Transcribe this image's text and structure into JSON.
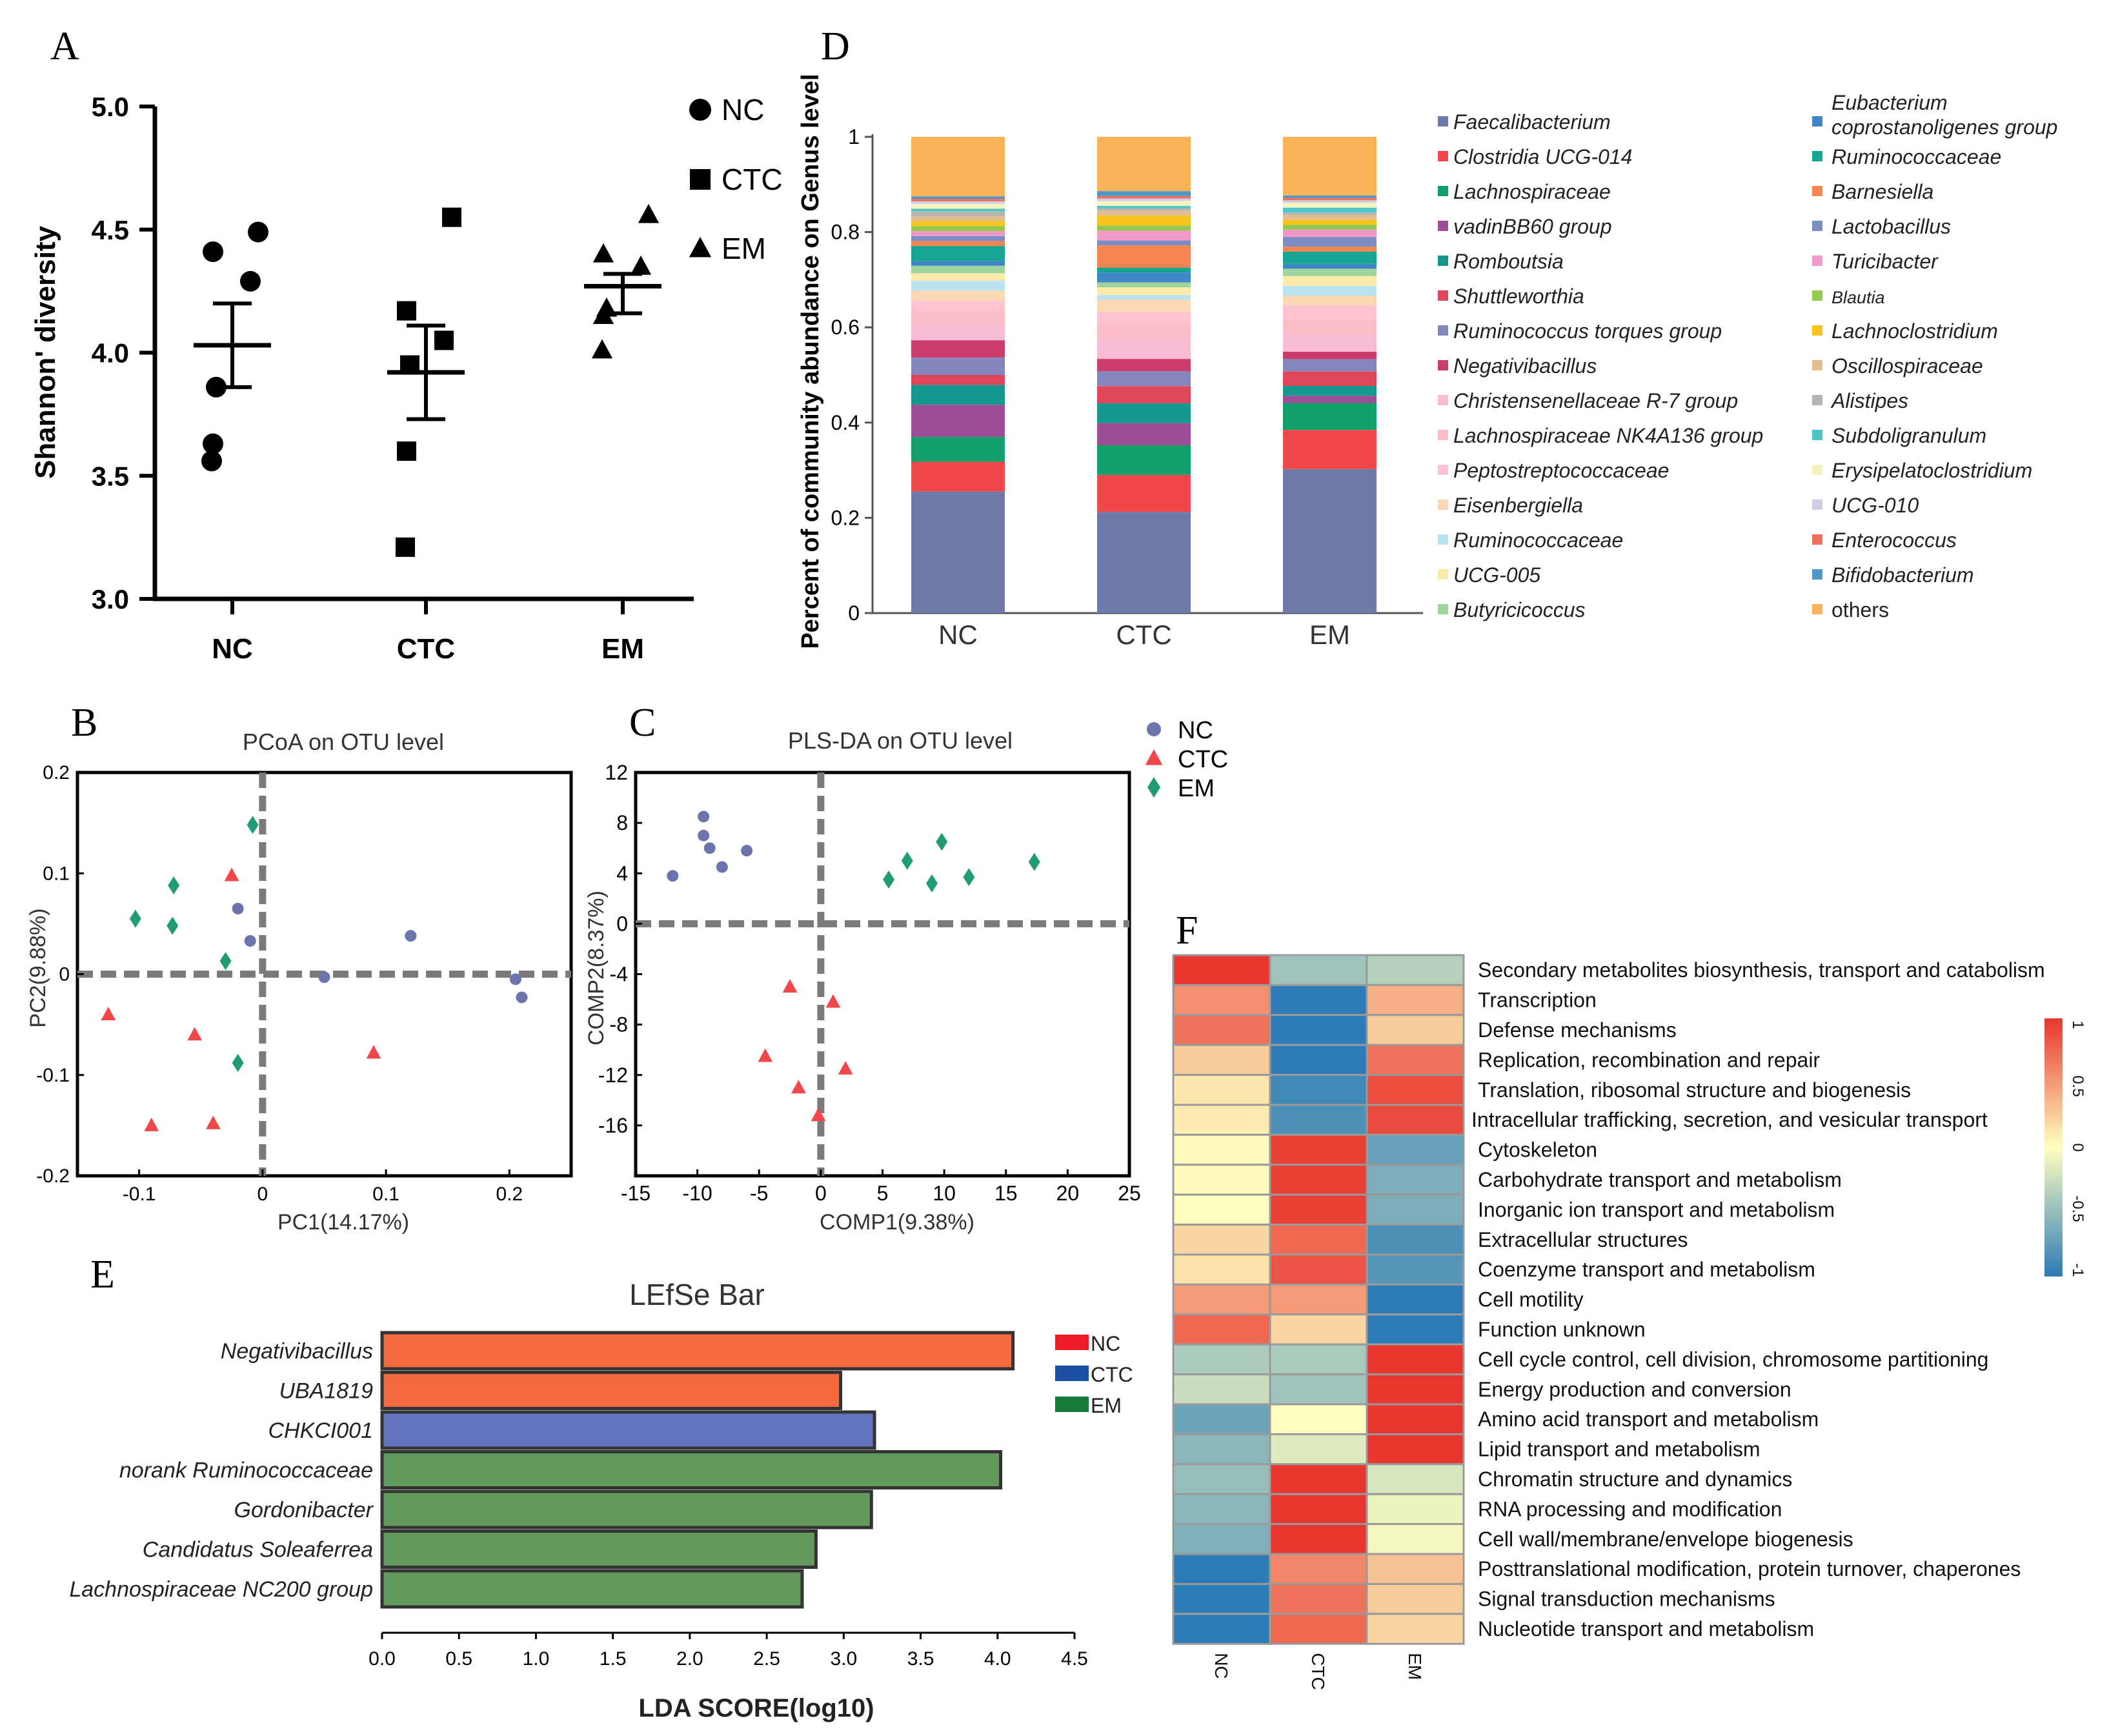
{
  "colors": {
    "nc_point": "#6b74ad",
    "ctc_point": "#f0474a",
    "em_point": "#1f9c75",
    "lefse_nc": "#f46a3e",
    "lefse_ctc": "#6173be",
    "lefse_em": "#629a5c",
    "lefse_legend_nc": "#ee1c24",
    "lefse_legend_ctc": "#1a4fa3",
    "lefse_legend_em": "#157a3a",
    "heat_low": "#2c7bb6",
    "heat_mid": "#ffffbf",
    "heat_high": "#e8352e"
  },
  "chart_data": [
    {
      "panel": "A",
      "type": "scatter",
      "title": "",
      "xlabel": "",
      "ylabel": "Shannon' diversity",
      "ylim": [
        3.0,
        5.0
      ],
      "yticks": [
        "3.0",
        "3.5",
        "4.0",
        "4.5",
        "5.0"
      ],
      "categories": [
        "NC",
        "CTC",
        "EM"
      ],
      "legend": [
        "NC",
        "CTC",
        "EM"
      ],
      "series": [
        {
          "name": "NC",
          "marker": "circle",
          "values": [
            4.49,
            4.41,
            4.29,
            3.86,
            3.63,
            3.56
          ],
          "mean": 4.03,
          "sem_upper": 4.2,
          "sem_lower": 3.86
        },
        {
          "name": "CTC",
          "marker": "square",
          "values": [
            4.55,
            4.17,
            4.05,
            3.95,
            3.6,
            3.21
          ],
          "mean": 3.92,
          "sem_upper": 4.11,
          "sem_lower": 3.73
        },
        {
          "name": "EM",
          "marker": "triangle",
          "values": [
            4.56,
            4.4,
            4.35,
            4.18,
            4.15,
            4.01
          ],
          "mean": 4.27,
          "sem_upper": 4.32,
          "sem_lower": 4.16
        }
      ]
    },
    {
      "panel": "B",
      "type": "scatter",
      "title": "PCoA on OTU level",
      "xlabel": "PC1(14.17%)",
      "ylabel": "PC2(9.88%)",
      "xlim": [
        -0.15,
        0.25
      ],
      "ylim": [
        -0.2,
        0.2
      ],
      "xticks": [
        "-0.1",
        "0",
        "0.1",
        "0.2"
      ],
      "yticks": [
        "-0.2",
        "-0.1",
        "0",
        "0.1",
        "0.2"
      ],
      "series": [
        {
          "name": "NC",
          "points": [
            [
              -0.02,
              0.065
            ],
            [
              -0.01,
              0.033
            ],
            [
              0.05,
              -0.003
            ],
            [
              0.12,
              0.038
            ],
            [
              0.205,
              -0.005
            ],
            [
              0.21,
              -0.023
            ]
          ]
        },
        {
          "name": "CTC",
          "points": [
            [
              -0.025,
              0.098
            ],
            [
              -0.125,
              -0.04
            ],
            [
              -0.055,
              -0.06
            ],
            [
              -0.09,
              -0.15
            ],
            [
              -0.04,
              -0.148
            ],
            [
              0.09,
              -0.078
            ]
          ]
        },
        {
          "name": "EM",
          "points": [
            [
              -0.008,
              0.148
            ],
            [
              -0.072,
              0.088
            ],
            [
              -0.103,
              0.055
            ],
            [
              -0.073,
              0.048
            ],
            [
              -0.03,
              0.013
            ],
            [
              -0.02,
              -0.088
            ]
          ]
        }
      ]
    },
    {
      "panel": "C",
      "type": "scatter",
      "title": "PLS-DA on OTU level",
      "xlabel": "COMP1(9.38%)",
      "ylabel": "COMP2(8.37%)",
      "xlim": [
        -15,
        25
      ],
      "ylim": [
        -20,
        12
      ],
      "xticks": [
        "-15",
        "-10",
        "-5",
        "0",
        "5",
        "10",
        "15",
        "20",
        "25"
      ],
      "yticks": [
        "-16",
        "-12",
        "-8",
        "-4",
        "0",
        "4",
        "8",
        "12"
      ],
      "legend": [
        "NC",
        "CTC",
        "EM"
      ],
      "series": [
        {
          "name": "NC",
          "points": [
            [
              -12,
              3.8
            ],
            [
              -9.5,
              8.5
            ],
            [
              -9.5,
              7
            ],
            [
              -9,
              6
            ],
            [
              -8,
              4.5
            ],
            [
              -6,
              5.8
            ]
          ]
        },
        {
          "name": "CTC",
          "points": [
            [
              -2.5,
              -5
            ],
            [
              1,
              -6.2
            ],
            [
              -4.5,
              -10.5
            ],
            [
              -1.8,
              -13
            ],
            [
              2,
              -11.5
            ],
            [
              -0.2,
              -15.2
            ]
          ]
        },
        {
          "name": "EM",
          "points": [
            [
              5.5,
              3.5
            ],
            [
              7,
              5
            ],
            [
              9,
              3.2
            ],
            [
              9.8,
              6.5
            ],
            [
              12,
              3.7
            ],
            [
              17.3,
              4.9
            ]
          ]
        }
      ]
    },
    {
      "panel": "D",
      "type": "bar",
      "stacked": true,
      "title": "",
      "xlabel": "",
      "ylabel": "Percent of community abundance on Genus level",
      "ylim": [
        0,
        1
      ],
      "yticks": [
        "0",
        "0.2",
        "0.4",
        "0.6",
        "0.8",
        "1"
      ],
      "categories": [
        "NC",
        "CTC",
        "EM"
      ],
      "series": [
        {
          "name": "Faecalibacterium",
          "color": "#6f7aab",
          "values": [
            0.245,
            0.205,
            0.295
          ]
        },
        {
          "name": "Clostridia UCG-014",
          "color": "#f0474a",
          "values": [
            0.06,
            0.075,
            0.08
          ]
        },
        {
          "name": "Lachnospiraceae",
          "color": "#12a16b",
          "values": [
            0.05,
            0.06,
            0.055
          ]
        },
        {
          "name": "vadinBB60 group",
          "color": "#9c4f96",
          "values": [
            0.065,
            0.045,
            0.015
          ]
        },
        {
          "name": "Romboutsia",
          "color": "#16978f",
          "values": [
            0.04,
            0.04,
            0.02
          ]
        },
        {
          "name": "Shuttleworthia",
          "color": "#e0465b",
          "values": [
            0.02,
            0.035,
            0.03
          ]
        },
        {
          "name": "Ruminococcus torques group",
          "color": "#8585bd",
          "values": [
            0.035,
            0.03,
            0.025
          ]
        },
        {
          "name": "Negativibacillus",
          "color": "#cb3b6b",
          "values": [
            0.035,
            0.025,
            0.015
          ]
        },
        {
          "name": "Christensenellaceae R-7 group",
          "color": "#f7bcd4",
          "values": [
            0.03,
            0.04,
            0.035
          ]
        },
        {
          "name": "Lachnospiraceae NK4A136 group",
          "color": "#fcbcc8",
          "values": [
            0.03,
            0.03,
            0.03
          ]
        },
        {
          "name": "Peptostreptococcaceae",
          "color": "#ffc4cf",
          "values": [
            0.02,
            0.025,
            0.03
          ]
        },
        {
          "name": "Eisenbergiella",
          "color": "#fcd7b3",
          "values": [
            0.02,
            0.025,
            0.02
          ]
        },
        {
          "name": "Ruminococcaceae",
          "color": "#b9e4ef",
          "values": [
            0.02,
            0.01,
            0.02
          ]
        },
        {
          "name": "UCG-005",
          "color": "#fde9a8",
          "values": [
            0.015,
            0.015,
            0.02
          ]
        },
        {
          "name": "Butyricicoccus",
          "color": "#9ed39b",
          "values": [
            0.015,
            0.01,
            0.015
          ]
        },
        {
          "name": "Eubacterium coprostanoligenes group",
          "color": "#3d87c7",
          "values": [
            0.01,
            0.02,
            0.01
          ]
        },
        {
          "name": "Ruminococcaceae",
          "color": "#15a592",
          "values": [
            0.03,
            0.01,
            0.025
          ]
        },
        {
          "name": "Barnesiella",
          "color": "#f6844e",
          "values": [
            0.01,
            0.045,
            0.01
          ]
        },
        {
          "name": "Lactobacillus",
          "color": "#7b8dc4",
          "values": [
            0.01,
            0.01,
            0.02
          ]
        },
        {
          "name": "Turicibacter",
          "color": "#f298c6",
          "values": [
            0.01,
            0.02,
            0.015
          ]
        },
        {
          "name": "Blautia",
          "color": "#93c94e",
          "values": [
            0.01,
            0.01,
            0.01
          ]
        },
        {
          "name": "Lachnoclostridium",
          "color": "#f6c41c",
          "values": [
            0.01,
            0.02,
            0.01
          ]
        },
        {
          "name": "Oscillospiraceae",
          "color": "#e3bd8d",
          "values": [
            0.01,
            0.01,
            0.01
          ]
        },
        {
          "name": "Alistipes",
          "color": "#b4b4b4",
          "values": [
            0.01,
            0.005,
            0.005
          ]
        },
        {
          "name": "Subdoligranulum",
          "color": "#4dc6c4",
          "values": [
            0.005,
            0.005,
            0.01
          ]
        },
        {
          "name": "Erysipelatoclostridium",
          "color": "#f4f3c2",
          "values": [
            0.01,
            0.01,
            0.01
          ]
        },
        {
          "name": "UCG-010",
          "color": "#cfcde6",
          "values": [
            0.005,
            0.005,
            0.005
          ]
        },
        {
          "name": "Enterococcus",
          "color": "#f16f5e",
          "values": [
            0.005,
            0.005,
            0.005
          ]
        },
        {
          "name": "Bifidobacterium",
          "color": "#4f97c8",
          "values": [
            0.005,
            0.01,
            0.005
          ]
        },
        {
          "name": "others",
          "color": "#fbb35a",
          "values": [
            0.12,
            0.11,
            0.12
          ]
        }
      ]
    },
    {
      "panel": "E",
      "type": "bar",
      "orientation": "horizontal",
      "title": "LEfSe Bar",
      "xlabel": "LDA SCORE(log10)",
      "ylabel": "",
      "xlim": [
        0,
        4.5
      ],
      "xticks": [
        "0.0",
        "0.5",
        "1.0",
        "1.5",
        "2.0",
        "2.5",
        "3.0",
        "3.5",
        "4.0",
        "4.5"
      ],
      "legend": [
        "NC",
        "CTC",
        "EM"
      ],
      "categories": [
        "Negativibacillus",
        "UBA1819",
        "CHKCI001",
        "norank Ruminococcaceae",
        "Gordonibacter",
        "Candidatus Soleaferrea",
        "Lachnospiraceae NC200 group"
      ],
      "values": [
        4.1,
        2.98,
        3.2,
        4.02,
        3.18,
        2.82,
        2.73
      ],
      "groups": [
        "NC",
        "NC",
        "CTC",
        "EM",
        "EM",
        "EM",
        "EM"
      ]
    },
    {
      "panel": "F",
      "type": "heatmap",
      "title": "",
      "columns": [
        "NC",
        "CTC",
        "EM"
      ],
      "rows": [
        "Secondary metabolites biosynthesis, transport and catabolism",
        "Transcription",
        "Defense mechanisms",
        "Replication, recombination and repair",
        "Translation, ribosomal structure and biogenesis",
        "Intracellular trafficking, secretion, and vesicular transport",
        "Cytoskeleton",
        "Carbohydrate transport and metabolism",
        "Inorganic ion transport and metabolism",
        "Extracellular structures",
        "Coenzyme transport and metabolism",
        "Cell motility",
        "Function unknown",
        "Cell cycle control, cell division, chromosome partitioning",
        "Energy production and conversion",
        "Amino acid transport and metabolism",
        "Lipid transport and metabolism",
        "Chromatin structure and dynamics",
        "RNA processing and modification",
        "Cell wall/membrane/envelope biogenesis",
        "Posttranslational modification, protein turnover, chaperones",
        "Signal transduction mechanisms",
        "Nucleotide transport and metabolism"
      ],
      "values": [
        [
          1.0,
          -0.45,
          -0.35
        ],
        [
          0.55,
          -1.0,
          0.4
        ],
        [
          0.7,
          -1.0,
          0.25
        ],
        [
          0.25,
          -1.0,
          0.7
        ],
        [
          0.12,
          -0.9,
          0.88
        ],
        [
          0.1,
          -0.85,
          0.9
        ],
        [
          0.02,
          0.95,
          -0.72
        ],
        [
          0.03,
          0.95,
          -0.62
        ],
        [
          0.0,
          0.95,
          -0.62
        ],
        [
          0.2,
          0.75,
          -0.85
        ],
        [
          0.15,
          0.85,
          -0.8
        ],
        [
          0.5,
          0.5,
          -1.0
        ],
        [
          0.75,
          0.2,
          -1.0
        ],
        [
          -0.4,
          -0.4,
          1.0
        ],
        [
          -0.25,
          -0.45,
          1.0
        ],
        [
          -0.7,
          0.0,
          1.0
        ],
        [
          -0.55,
          -0.15,
          1.0
        ],
        [
          -0.5,
          1.0,
          -0.2
        ],
        [
          -0.55,
          1.0,
          -0.1
        ],
        [
          -0.6,
          1.0,
          -0.05
        ],
        [
          -1.0,
          0.6,
          0.3
        ],
        [
          -1.0,
          0.7,
          0.25
        ],
        [
          -1.0,
          0.75,
          0.2
        ]
      ],
      "scale_ticks": [
        "1",
        "0.5",
        "0",
        "-0.5",
        "-1"
      ],
      "range": [
        -1,
        1
      ]
    }
  ],
  "panel_labels": {
    "a": "A",
    "b": "B",
    "c": "C",
    "d": "D",
    "e": "E",
    "f": "F"
  }
}
